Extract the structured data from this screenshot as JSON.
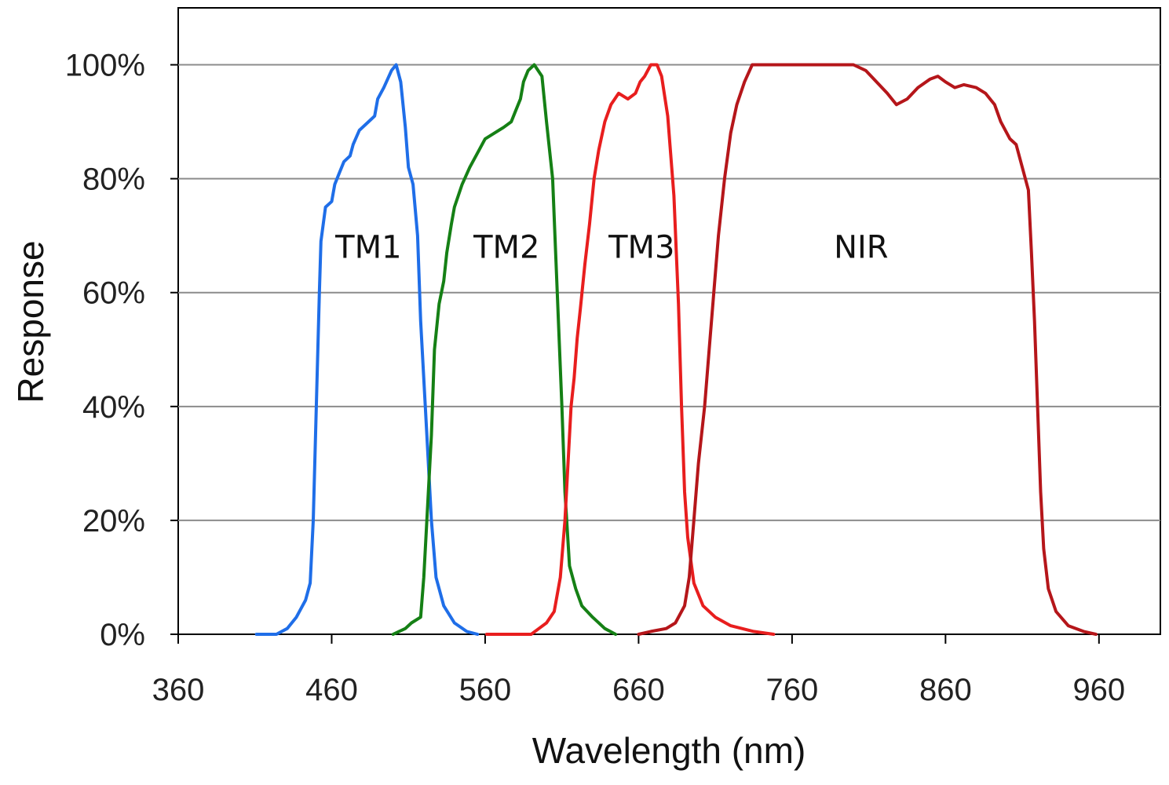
{
  "chart_data": {
    "type": "line",
    "title": "",
    "xlabel": "Wavelength (nm)",
    "ylabel": "Response",
    "xlim": [
      360,
      1000
    ],
    "ylim": [
      0,
      110
    ],
    "grid": true,
    "x_ticks": [
      360,
      460,
      560,
      660,
      760,
      860,
      960
    ],
    "x_tick_labels": [
      "360",
      "460",
      "560",
      "660",
      "760",
      "860",
      "960"
    ],
    "y_ticks": [
      0,
      20,
      40,
      60,
      80,
      100
    ],
    "y_tick_labels": [
      "0%",
      "20%",
      "40%",
      "60%",
      "80%",
      "100%"
    ],
    "series": [
      {
        "name": "TM1",
        "color": "#1f6ee8",
        "label_at": [
          484,
          68
        ],
        "points": [
          [
            411,
            0
          ],
          [
            424,
            0
          ],
          [
            431,
            1
          ],
          [
            437,
            3
          ],
          [
            443,
            6
          ],
          [
            446,
            9
          ],
          [
            448,
            20
          ],
          [
            450,
            40
          ],
          [
            452,
            60
          ],
          [
            453,
            69
          ],
          [
            456,
            75
          ],
          [
            460,
            76
          ],
          [
            462,
            79
          ],
          [
            465,
            81
          ],
          [
            468,
            83
          ],
          [
            472,
            84
          ],
          [
            474,
            86
          ],
          [
            478,
            88.5
          ],
          [
            484,
            90
          ],
          [
            488,
            91
          ],
          [
            490,
            94
          ],
          [
            494,
            96
          ],
          [
            499,
            99
          ],
          [
            502,
            100
          ],
          [
            505,
            97
          ],
          [
            508,
            89
          ],
          [
            510,
            82
          ],
          [
            513,
            79
          ],
          [
            516,
            70
          ],
          [
            518,
            55
          ],
          [
            522,
            35
          ],
          [
            525,
            20
          ],
          [
            528,
            10
          ],
          [
            533,
            5
          ],
          [
            540,
            2
          ],
          [
            548,
            0.5
          ],
          [
            555,
            0
          ]
        ]
      },
      {
        "name": "TM2",
        "color": "#158015",
        "label_at": [
          574,
          68
        ],
        "points": [
          [
            500,
            0
          ],
          [
            508,
            1
          ],
          [
            512,
            2
          ],
          [
            518,
            3
          ],
          [
            520,
            10
          ],
          [
            522,
            20
          ],
          [
            525,
            35
          ],
          [
            527,
            50
          ],
          [
            530,
            58
          ],
          [
            533,
            62
          ],
          [
            535,
            67
          ],
          [
            538,
            72
          ],
          [
            540,
            75
          ],
          [
            545,
            79
          ],
          [
            550,
            82
          ],
          [
            556,
            85
          ],
          [
            560,
            87
          ],
          [
            566,
            88
          ],
          [
            572,
            89
          ],
          [
            577,
            90
          ],
          [
            580,
            92
          ],
          [
            583,
            94
          ],
          [
            585,
            97
          ],
          [
            588,
            99
          ],
          [
            592,
            100
          ],
          [
            597,
            98
          ],
          [
            600,
            90
          ],
          [
            604,
            80
          ],
          [
            607,
            60
          ],
          [
            610,
            40
          ],
          [
            612,
            25
          ],
          [
            615,
            12
          ],
          [
            619,
            8
          ],
          [
            623,
            5
          ],
          [
            630,
            3
          ],
          [
            638,
            1
          ],
          [
            645,
            0
          ]
        ]
      },
      {
        "name": "TM3",
        "color": "#e81e1e",
        "label_at": [
          662,
          68
        ],
        "points": [
          [
            561,
            0
          ],
          [
            570,
            0
          ],
          [
            580,
            0
          ],
          [
            590,
            0
          ],
          [
            595,
            1
          ],
          [
            600,
            2
          ],
          [
            605,
            4
          ],
          [
            609,
            10
          ],
          [
            612,
            20
          ],
          [
            614,
            30
          ],
          [
            616,
            40
          ],
          [
            618,
            45
          ],
          [
            620,
            52
          ],
          [
            622,
            57
          ],
          [
            625,
            65
          ],
          [
            628,
            72
          ],
          [
            631,
            80
          ],
          [
            634,
            85
          ],
          [
            638,
            90
          ],
          [
            642,
            93
          ],
          [
            647,
            95
          ],
          [
            653,
            94
          ],
          [
            658,
            95
          ],
          [
            661,
            97
          ],
          [
            664,
            98
          ],
          [
            668,
            100
          ],
          [
            672,
            100
          ],
          [
            675,
            98
          ],
          [
            679,
            91
          ],
          [
            683,
            77
          ],
          [
            686,
            58
          ],
          [
            688,
            40
          ],
          [
            690,
            25
          ],
          [
            692,
            17
          ],
          [
            696,
            9
          ],
          [
            702,
            5
          ],
          [
            710,
            3
          ],
          [
            720,
            1.5
          ],
          [
            735,
            0.5
          ],
          [
            748,
            0
          ]
        ]
      },
      {
        "name": "NIR",
        "color": "#b5161a",
        "label_at": [
          805,
          68
        ],
        "points": [
          [
            660,
            0
          ],
          [
            668,
            0.5
          ],
          [
            678,
            1
          ],
          [
            684,
            2
          ],
          [
            690,
            5
          ],
          [
            693,
            10
          ],
          [
            696,
            20
          ],
          [
            699,
            30
          ],
          [
            703,
            40
          ],
          [
            706,
            50
          ],
          [
            709,
            60
          ],
          [
            712,
            70
          ],
          [
            716,
            80
          ],
          [
            720,
            88
          ],
          [
            724,
            93
          ],
          [
            729,
            97
          ],
          [
            734,
            100
          ],
          [
            745,
            100
          ],
          [
            760,
            100
          ],
          [
            780,
            100
          ],
          [
            800,
            100
          ],
          [
            808,
            99
          ],
          [
            815,
            97
          ],
          [
            822,
            95
          ],
          [
            828,
            93
          ],
          [
            835,
            94
          ],
          [
            842,
            96
          ],
          [
            850,
            97.5
          ],
          [
            855,
            98
          ],
          [
            860,
            97
          ],
          [
            866,
            96
          ],
          [
            872,
            96.5
          ],
          [
            880,
            96
          ],
          [
            886,
            95
          ],
          [
            892,
            93
          ],
          [
            896,
            90
          ],
          [
            902,
            87
          ],
          [
            906,
            86
          ],
          [
            910,
            82
          ],
          [
            914,
            78
          ],
          [
            916,
            67
          ],
          [
            918,
            55
          ],
          [
            920,
            40
          ],
          [
            922,
            25
          ],
          [
            924,
            15
          ],
          [
            927,
            8
          ],
          [
            932,
            4
          ],
          [
            940,
            1.5
          ],
          [
            950,
            0.5
          ],
          [
            958,
            0
          ]
        ]
      }
    ]
  }
}
